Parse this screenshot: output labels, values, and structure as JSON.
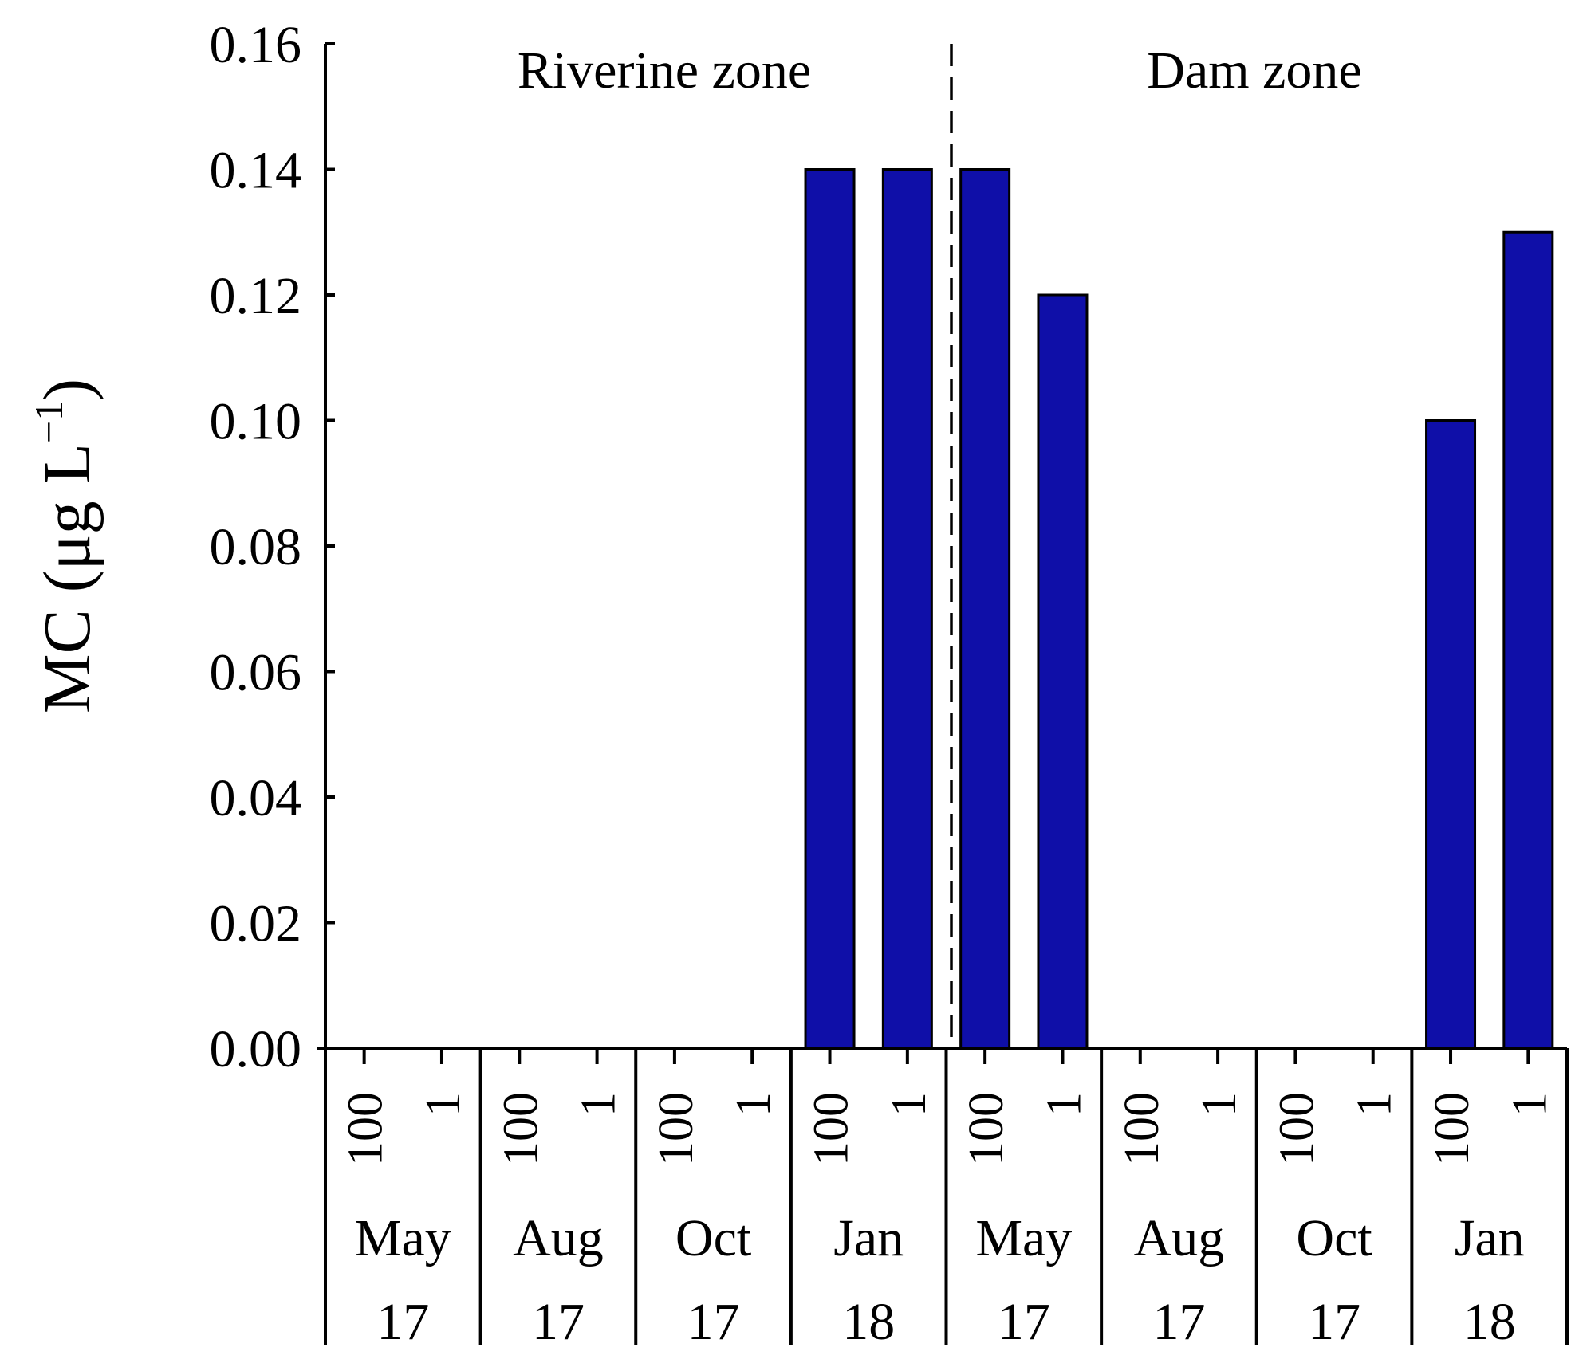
{
  "chart_data": {
    "type": "bar",
    "ylabel": "MC (μg L",
    "ylabel_superscript": "−1",
    "ylabel_close": ")",
    "ylim": [
      0,
      0.16
    ],
    "yticks": [
      "0.00",
      "0.02",
      "0.04",
      "0.06",
      "0.08",
      "0.10",
      "0.12",
      "0.14",
      "0.16"
    ],
    "zones": [
      "Riverine zone",
      "Dam zone"
    ],
    "sample_labels": [
      "100",
      "1"
    ],
    "groups": [
      {
        "zone": "Riverine zone",
        "month": "May",
        "year": "17",
        "values": [
          0,
          0
        ]
      },
      {
        "zone": "Riverine zone",
        "month": "Aug",
        "year": "17",
        "values": [
          0,
          0
        ]
      },
      {
        "zone": "Riverine zone",
        "month": "Oct",
        "year": "17",
        "values": [
          0,
          0
        ]
      },
      {
        "zone": "Riverine zone",
        "month": "Jan",
        "year": "18",
        "values": [
          0.14,
          0.14
        ]
      },
      {
        "zone": "Dam zone",
        "month": "May",
        "year": "17",
        "values": [
          0.14,
          0.12
        ]
      },
      {
        "zone": "Dam zone",
        "month": "Aug",
        "year": "17",
        "values": [
          0,
          0
        ]
      },
      {
        "zone": "Dam zone",
        "month": "Oct",
        "year": "17",
        "values": [
          0,
          0
        ]
      },
      {
        "zone": "Dam zone",
        "month": "Jan",
        "year": "18",
        "values": [
          0.1,
          0.13
        ]
      }
    ],
    "colors": {
      "bar": "#0f0fa8",
      "axis": "#000000"
    }
  }
}
